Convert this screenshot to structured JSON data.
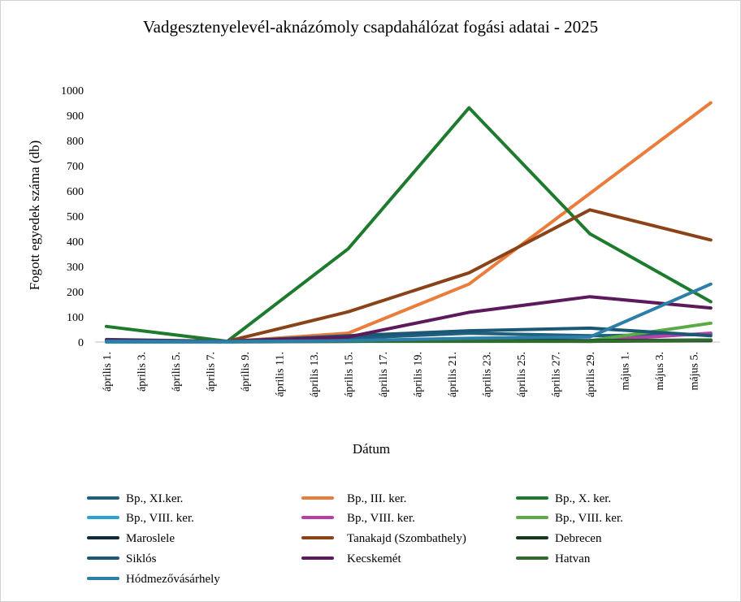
{
  "chart_data": {
    "type": "line",
    "title": "Vadgesztenyelevél-aknázómoly csapdahálózat fogási adatai - 2025",
    "xlabel": "Dátum",
    "ylabel": "Fogott egyedek száma (db)",
    "ylim": [
      0,
      1000
    ],
    "yticks": [
      "0",
      "100",
      "200",
      "300",
      "400",
      "500",
      "600",
      "700",
      "800",
      "900",
      "1000"
    ],
    "x_categories": [
      "április 1.",
      "április 3.",
      "április 5.",
      "április 7.",
      "április 9.",
      "április 11.",
      "április 13.",
      "április 15.",
      "április 17.",
      "április 19.",
      "április 21.",
      "április 23.",
      "április 25.",
      "április 27.",
      "április 29.",
      "május 1.",
      "május 3.",
      "május 5."
    ],
    "grid": false,
    "legend_position": "bottom",
    "series": [
      {
        "name": "Bp., XI.ker.",
        "color": "#1f5f80",
        "points": [
          [
            "2025-04-01",
            10
          ],
          [
            "2025-04-08",
            3
          ],
          [
            "2025-04-15",
            15
          ],
          [
            "2025-04-22",
            35
          ],
          [
            "2025-04-29",
            25
          ],
          [
            "2025-05-06",
            30
          ]
        ]
      },
      {
        "name": "Bp., III. ker.",
        "color": "#ea7c3c",
        "points": [
          [
            "2025-04-01",
            0
          ],
          [
            "2025-04-08",
            2
          ],
          [
            "2025-04-15",
            35
          ],
          [
            "2025-04-22",
            230
          ],
          [
            "2025-05-06",
            950
          ]
        ]
      },
      {
        "name": "Bp., X. ker.",
        "color": "#1e7b2e",
        "points": [
          [
            "2025-04-01",
            62
          ],
          [
            "2025-04-08",
            3
          ],
          [
            "2025-04-15",
            370
          ],
          [
            "2025-04-22",
            930
          ],
          [
            "2025-04-29",
            430
          ],
          [
            "2025-05-06",
            160
          ]
        ]
      },
      {
        "name": "Bp., VIII. ker.",
        "color": "#29a3d6",
        "points": [
          [
            "2025-04-01",
            0
          ],
          [
            "2025-04-08",
            0
          ],
          [
            "2025-04-15",
            3
          ],
          [
            "2025-04-22",
            8
          ],
          [
            "2025-04-29",
            5
          ],
          [
            "2025-05-06",
            5
          ]
        ]
      },
      {
        "name": "Bp., VIII. ker.",
        "color": "#b83fa8",
        "points": [
          [
            "2025-04-29",
            5
          ],
          [
            "2025-05-06",
            35
          ]
        ]
      },
      {
        "name": "Bp., VIII. ker.",
        "color": "#5aab45",
        "points": [
          [
            "2025-04-29",
            5
          ],
          [
            "2025-05-06",
            75
          ]
        ]
      },
      {
        "name": "Maroslele",
        "color": "#0f2a3a",
        "points": [
          [
            "2025-04-01",
            5
          ],
          [
            "2025-04-08",
            2
          ],
          [
            "2025-04-15",
            5
          ],
          [
            "2025-04-22",
            8
          ],
          [
            "2025-04-29",
            5
          ],
          [
            "2025-05-06",
            8
          ]
        ]
      },
      {
        "name": "Tanakajd (Szombathely)",
        "color": "#8a4318",
        "points": [
          [
            "2025-04-01",
            5
          ],
          [
            "2025-04-08",
            3
          ],
          [
            "2025-04-15",
            120
          ],
          [
            "2025-04-22",
            275
          ],
          [
            "2025-04-29",
            525
          ],
          [
            "2025-05-06",
            405
          ]
        ]
      },
      {
        "name": "Debrecen",
        "color": "#143818",
        "points": [
          [
            "2025-04-01",
            3
          ],
          [
            "2025-04-08",
            2
          ],
          [
            "2025-04-15",
            3
          ],
          [
            "2025-04-22",
            5
          ],
          [
            "2025-04-29",
            3
          ],
          [
            "2025-05-06",
            5
          ]
        ]
      },
      {
        "name": "Siklós",
        "color": "#1a5874",
        "points": [
          [
            "2025-04-01",
            5
          ],
          [
            "2025-04-08",
            3
          ],
          [
            "2025-04-15",
            25
          ],
          [
            "2025-04-22",
            45
          ],
          [
            "2025-04-29",
            55
          ],
          [
            "2025-05-06",
            25
          ]
        ]
      },
      {
        "name": "Kecskemét",
        "color": "#5c1a5c",
        "points": [
          [
            "2025-04-01",
            8
          ],
          [
            "2025-04-08",
            3
          ],
          [
            "2025-04-15",
            20
          ],
          [
            "2025-04-22",
            118
          ],
          [
            "2025-04-29",
            180
          ],
          [
            "2025-05-06",
            135
          ]
        ]
      },
      {
        "name": "Hatvan",
        "color": "#2f6b2a",
        "points": [
          [
            "2025-04-01",
            3
          ],
          [
            "2025-04-08",
            2
          ],
          [
            "2025-04-15",
            3
          ],
          [
            "2025-04-22",
            3
          ],
          [
            "2025-04-29",
            3
          ],
          [
            "2025-05-06",
            8
          ]
        ]
      },
      {
        "name": "Hódmezővásárhely",
        "color": "#2b7fa8",
        "points": [
          [
            "2025-04-01",
            3
          ],
          [
            "2025-04-08",
            2
          ],
          [
            "2025-04-15",
            5
          ],
          [
            "2025-04-22",
            15
          ],
          [
            "2025-04-29",
            20
          ],
          [
            "2025-05-06",
            230
          ]
        ]
      }
    ]
  }
}
